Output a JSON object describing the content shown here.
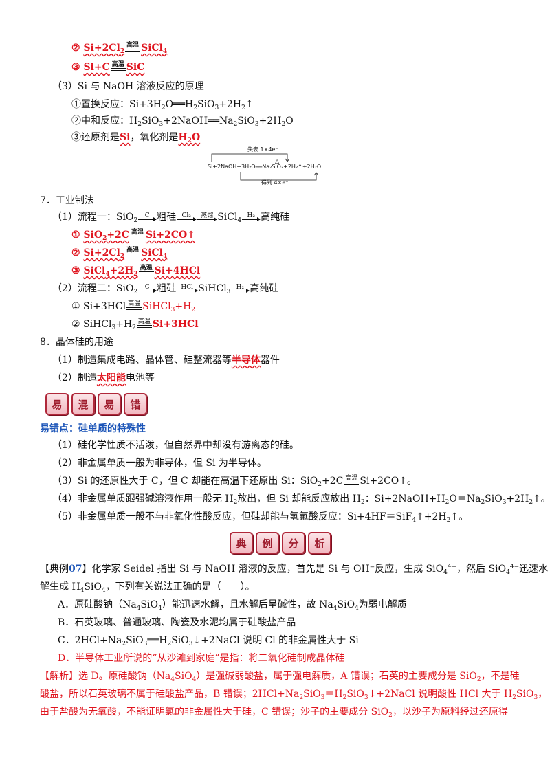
{
  "s6": {
    "eq2": {
      "num": "②",
      "a": "Si+2Cl",
      "a_sub": "2",
      "cond": "高温",
      "b": "SiCl",
      "b_sub": "4"
    },
    "eq3": {
      "num": "③",
      "a": "Si+C",
      "cond": "高温",
      "b": "SiC"
    },
    "p3_title": "（3）Si 与 NaOH 溶液反应的原理",
    "p3_1": {
      "label": "①置换反应：",
      "t1": "Si+3H",
      "s1": "2",
      "t2": "O══H",
      "s2": "2",
      "t3": "SiO",
      "s3": "3",
      "t4": "+2H",
      "s4": "2",
      "t5": "↑"
    },
    "p3_2": {
      "label": "②中和反应：",
      "t1": "H",
      "s1": "2",
      "t2": "SiO",
      "s2": "3",
      "t3": "+2NaOH══Na",
      "s3": "2",
      "t4": "SiO",
      "s4": "3",
      "t5": "+2H",
      "s5": "2",
      "t6": "O"
    },
    "p3_3": {
      "a": "③还原剂是",
      "b": "Si",
      "c": "，氧化剂是",
      "d": "H",
      "d_sub": "2",
      "e": "O"
    },
    "diagram": {
      "top": "失去 1×4e⁻",
      "eq": "Si+2NaOH+3H₂O══Na₂SiO₃+2H₂↑+2H₂O",
      "bottom": "得到 4×e⁻",
      "cond": "△"
    }
  },
  "s7": {
    "title": "7．工业制法",
    "flow1": {
      "label": "（1）流程一：",
      "a": "SiO",
      "a_sub": "2",
      "c1": "C",
      "b": "粗硅",
      "c2": "Cl₂",
      "c3": "蒸馏",
      "d": "SiCl",
      "d_sub": "4",
      "c4": "H₂",
      "e": "高纯硅"
    },
    "f1_1": {
      "num": "①",
      "a": "SiO",
      "a_sub": "2",
      "b": "+2C",
      "cond": "高温",
      "c": "Si+2CO↑"
    },
    "f1_2": {
      "num": "②",
      "a": "Si+2Cl",
      "a_sub": "2",
      "cond": "高温",
      "c": "SiCl",
      "c_sub": "4"
    },
    "f1_3": {
      "num": "③",
      "a": "SiCl",
      "a_sub": "4",
      "b": "+2H",
      "b_sub": "2",
      "cond": "高温",
      "c": "Si+4HCl"
    },
    "flow2": {
      "label": "（2）流程二：",
      "a": "SiO",
      "a_sub": "2",
      "c1": "C",
      "b": "粗硅",
      "c2": "HCl",
      "d": "SiHCl",
      "d_sub": "3",
      "c3": "H₂",
      "e": "高纯硅"
    },
    "f2_1": {
      "num": "①",
      "a": "Si+3HCl",
      "cond": "高温",
      "c": "SiHCl",
      "c_sub": "3",
      "d": "+H",
      "d_sub": "2"
    },
    "f2_2": {
      "num": "②",
      "a": "SiHCl",
      "a_sub": "3",
      "b": "+H",
      "b_sub": "2",
      "cond": "高温",
      "c": "Si+3HCl"
    }
  },
  "s8": {
    "title": "8．晶体硅的用途",
    "u1": {
      "a": "（1）制造集成电路、晶体管、硅整流器等",
      "b": "半导体",
      "c": "器件"
    },
    "u2": {
      "a": "（2）制造",
      "b": "太阳能",
      "c": "电池等"
    }
  },
  "badge1": [
    "易",
    "混",
    "易",
    "错"
  ],
  "err": {
    "title": "易错点：硅单质的特殊性",
    "e1": "（1）硅化学性质不活泼，但自然界中却没有游离态的硅。",
    "e2": "（2）非金属单质一般为非导体，但 Si 为半导体。",
    "e3": {
      "a": "（3）Si 的还原性大于 C，但 C 却能在高温下还原出 Si：SiO",
      "a_sub": "2",
      "b": "+2C",
      "cond": "高温",
      "c": "Si+2CO↑。"
    },
    "e4": {
      "a": "（4）非金属单质跟强碱溶液作用一般无 H",
      "a_sub": "2",
      "b": "放出，但 Si 却能反应放出 H",
      "b_sub": "2",
      "c": "：Si+2NaOH+H",
      "c_sub": "2",
      "d": "O＝Na",
      "d_sub": "2",
      "e": "SiO",
      "e_sub": "3",
      "f": "+2H",
      "f_sub": "2",
      "g": "↑。"
    },
    "e5": {
      "a": "（5）非金属单质一般不与非氧化性酸反应，但硅却能与氢氟酸反应：Si+4HF＝SiF",
      "a_sub": "4",
      "b": "↑+2H",
      "b_sub": "2",
      "c": "↑。"
    }
  },
  "badge2": [
    "典",
    "例",
    "分",
    "析"
  ],
  "ex": {
    "tag": "【典例",
    "num": "07",
    "tag_end": "】",
    "q1a": "化学家 Seidel 指出 Si 与 NaOH 溶液的反应，首先是 Si 与 OH⁻反应，生成 SiO",
    "q1_sub": "4",
    "q1_sup": "4−",
    "q1b": "，然后 SiO",
    "q1c_sub": "4",
    "q1c_sup": "4−",
    "q1d": "迅速水",
    "q2a": "解生成 H",
    "q2_sub": "4",
    "q2b": "SiO",
    "q2_sub2": "4",
    "q2c": "，下列有关说法正确的是（　　）。",
    "A": {
      "a": "A．原硅酸钠（Na",
      "a_sub": "4",
      "b": "SiO",
      "b_sub": "4",
      "c": "）能迅速水解，且水解后呈碱性，故 Na",
      "c_sub": "4",
      "d": "SiO",
      "d_sub": "4",
      "e": "为弱电解质"
    },
    "B": "B．石英玻璃、普通玻璃、陶瓷及水泥均属于硅酸盐产品",
    "C": {
      "a": "C．2HCl+Na",
      "a_sub": "2",
      "b": "SiO",
      "b_sub": "3",
      "c": "══H",
      "c_sub": "2",
      "d": "SiO",
      "d_sub": "3",
      "e": "↓+2NaCl 说明 Cl 的非金属性大于 Si"
    },
    "D": "D．半导体工业所说的“从沙滩到家庭”是指：将二氧化硅制成晶体硅",
    "ans1": {
      "a": "【解析】选 D。原硅酸钠（Na",
      "a_sub": "4",
      "b": "SiO",
      "b_sub": "4",
      "c": "）是强碱弱酸盐，属于强电解质，A 错误；石英的主要成分是 SiO",
      "c_sub": "2",
      "d": "，不是硅"
    },
    "ans2": {
      "a": "酸盐，所以石英玻璃不属于硅酸盐产品，B 错误；2HCl+Na",
      "a_sub": "2",
      "b": "SiO",
      "b_sub": "3",
      "c": "＝H",
      "c_sub": "2",
      "d": "SiO",
      "d_sub": "3",
      "e": "↓+2NaCl 说明酸性 HCl 大于 H",
      "e_sub": "2",
      "f": "SiO",
      "f_sub": "3",
      "g": "，"
    },
    "ans3": {
      "a": "由于盐酸为无氧酸，不能证明氯的非金属性大于硅，C 错误；沙子的主要成分 SiO",
      "a_sub": "2",
      "b": "，以沙子为原料经过还原得"
    }
  }
}
